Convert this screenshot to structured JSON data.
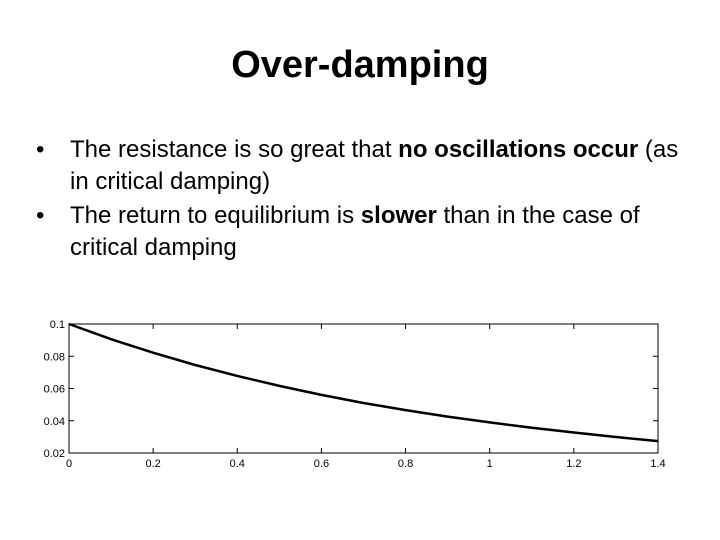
{
  "slide": {
    "title": "Over-damping",
    "bullet_symbol": "•",
    "bullets": [
      {
        "parts": [
          {
            "text": "The resistance is so great that ",
            "bold": false
          },
          {
            "text": "no oscillations occur",
            "bold": true
          },
          {
            "text": " (as in critical damping)",
            "bold": false
          }
        ]
      },
      {
        "parts": [
          {
            "text": "The return to equilibrium is ",
            "bold": false
          },
          {
            "text": "slower",
            "bold": true
          },
          {
            "text": " than in the case of critical damping",
            "bold": false
          }
        ]
      }
    ]
  },
  "chart_data": {
    "type": "line",
    "title": "",
    "xlabel": "",
    "ylabel": "",
    "xlim": [
      0,
      1.4
    ],
    "ylim": [
      0.02,
      0.1
    ],
    "x_ticks": [
      0,
      0.2,
      0.4,
      0.6,
      0.8,
      1,
      1.2,
      1.4
    ],
    "x_tick_labels": [
      "0",
      "0.2",
      "0.4",
      "0.6",
      "0.8",
      "1",
      "1.2",
      "1.4"
    ],
    "y_ticks": [
      0.02,
      0.04,
      0.06,
      0.08,
      0.1
    ],
    "y_tick_labels": [
      "0.02",
      "0.04",
      "0.06",
      "0.08",
      "0.1"
    ],
    "grid": false,
    "series": [
      {
        "color": "#000000",
        "x": [
          0,
          0.1,
          0.2,
          0.3,
          0.4,
          0.5,
          0.6,
          0.7,
          0.8,
          0.9,
          1.0,
          1.1,
          1.2,
          1.3,
          1.4
        ],
        "y": [
          0.1,
          0.0906,
          0.0822,
          0.0746,
          0.0678,
          0.0616,
          0.056,
          0.051,
          0.0466,
          0.0426,
          0.039,
          0.0357,
          0.0327,
          0.0299,
          0.0274
        ]
      }
    ]
  }
}
